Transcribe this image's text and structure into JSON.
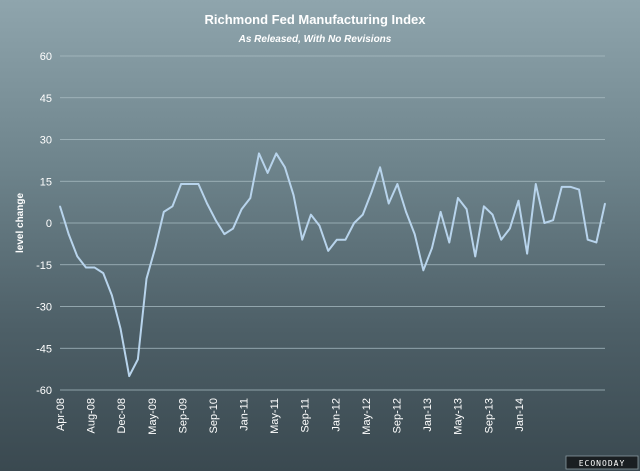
{
  "chart_data": {
    "type": "line",
    "title": "Richmond Fed Manufacturing Index",
    "subtitle": "As Released, With No Revisions",
    "xlabel": "",
    "ylabel": "level change",
    "ylim": [
      -60,
      60
    ],
    "yticks": [
      "60",
      "45",
      "30",
      "15",
      "0",
      "-15",
      "-30",
      "-45",
      "-60"
    ],
    "grid": true,
    "legend": "none",
    "x_tick_labels": [
      "Apr-08",
      "Aug-08",
      "Dec-08",
      "May-09",
      "Sep-09",
      "Sep-10",
      "Jan-11",
      "May-11",
      "Sep-11",
      "Jan-12",
      "May-12",
      "Sep-12",
      "Jan-13",
      "May-13",
      "Sep-13",
      "Jan-14"
    ],
    "line_color": "#b8d4ec",
    "series": [
      {
        "values": [
          6,
          -4,
          -12,
          -16,
          -16,
          -18,
          -26,
          -38,
          -55,
          -49,
          -20,
          -9,
          4,
          6,
          14,
          14,
          14,
          7,
          1,
          -4,
          -2,
          5,
          9,
          25,
          18,
          25,
          20,
          10,
          -6,
          3,
          -1,
          -10,
          -6,
          -6,
          0,
          3,
          11,
          20,
          7,
          14,
          4,
          -4,
          -17,
          -9,
          4,
          -7,
          9,
          5,
          -12,
          6,
          3,
          -6,
          -2,
          8,
          -11,
          14,
          0,
          1,
          13,
          13,
          12,
          -6,
          -7,
          7
        ]
      }
    ]
  },
  "branding": {
    "logo_text": "ECONODAY"
  }
}
